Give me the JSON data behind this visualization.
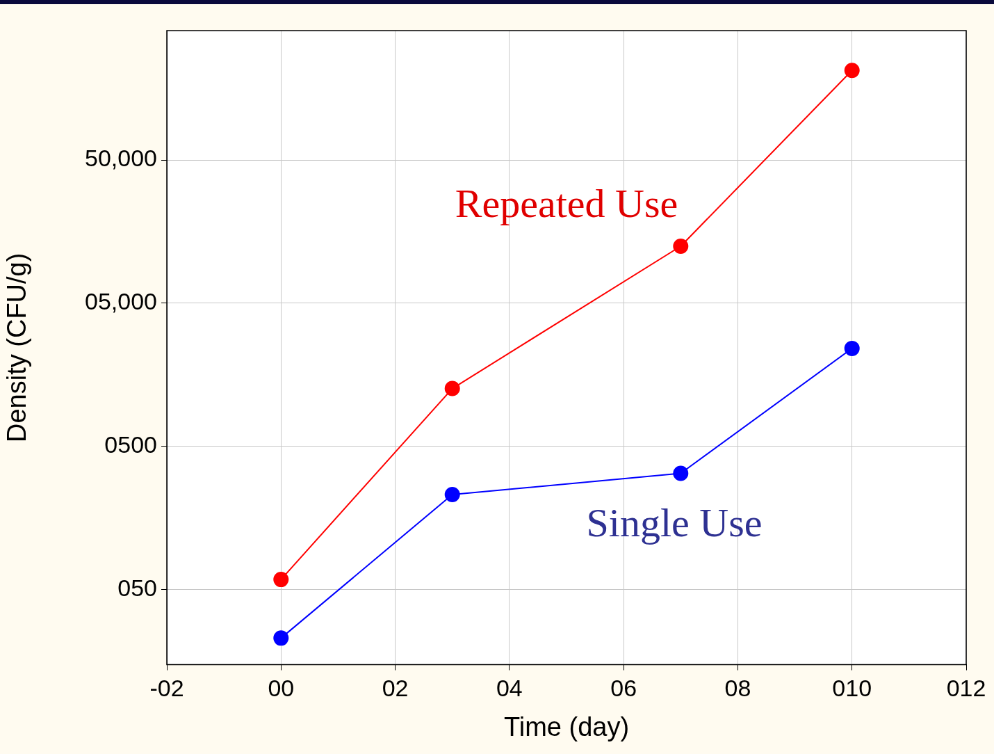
{
  "chart_data": {
    "type": "line",
    "xlabel": "Time (day)",
    "ylabel": "Density (CFU/g)",
    "log": "y",
    "xlim": [
      -2,
      12
    ],
    "xticks": [
      {
        "value": -2,
        "label": "-02"
      },
      {
        "value": 0,
        "label": "00"
      },
      {
        "value": 2,
        "label": "02"
      },
      {
        "value": 4,
        "label": "04"
      },
      {
        "value": 6,
        "label": "06"
      },
      {
        "value": 8,
        "label": "08"
      },
      {
        "value": 10,
        "label": "010"
      },
      {
        "value": 12,
        "label": "012"
      }
    ],
    "ylim": [
      15,
      400000
    ],
    "yticks": [
      {
        "value": 50,
        "label": "050"
      },
      {
        "value": 500,
        "label": "0500"
      },
      {
        "value": 5000,
        "label": "05,000"
      },
      {
        "value": 50000,
        "label": "50,000"
      }
    ],
    "grid": true,
    "marker": "circle",
    "line_style": "solid",
    "legend": false,
    "series": [
      {
        "name": "Repeated Use",
        "color": "#ff0000",
        "x": [
          0,
          3,
          7,
          10
        ],
        "values": [
          59,
          1270,
          12500,
          211000
        ]
      },
      {
        "name": "Single Use",
        "color": "#0000ff",
        "x": [
          0,
          3,
          7,
          10
        ],
        "values": [
          23,
          231,
          325,
          2420
        ]
      }
    ]
  }
}
